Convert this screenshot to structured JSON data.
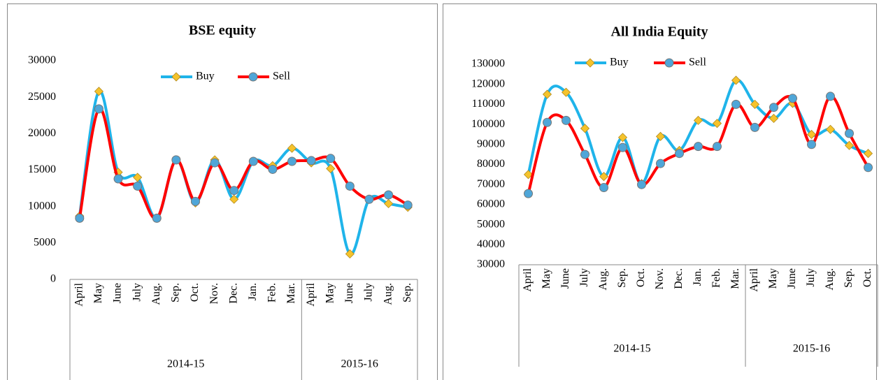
{
  "chart_data": [
    {
      "type": "line",
      "title": "BSE equity",
      "categories": [
        "April",
        "May",
        "June",
        "July",
        "Aug.",
        "Sep.",
        "Oct.",
        "Nov.",
        "Dec.",
        "Jan.",
        "Feb.",
        "Mar.",
        "April",
        "May",
        "June",
        "July",
        "Aug.",
        "Sep."
      ],
      "groups": [
        {
          "name": "2014-15",
          "count": 12
        },
        {
          "name": "2015-16",
          "count": 6
        }
      ],
      "series": [
        {
          "name": "Buy",
          "color": "#1fb4ea",
          "marker_color": "#f5c32c",
          "marker": "diamond",
          "values": [
            8700,
            25800,
            14700,
            14000,
            8400,
            16400,
            10500,
            16400,
            11000,
            16200,
            15600,
            18000,
            16000,
            15200,
            3500,
            11000,
            10400,
            9900
          ]
        },
        {
          "name": "Sell",
          "color": "#ff0000",
          "marker_color": "#4fa6d8",
          "marker": "circle",
          "values": [
            8400,
            23400,
            13800,
            12800,
            8400,
            16400,
            10700,
            16000,
            12200,
            16200,
            15100,
            16200,
            16300,
            16600,
            12800,
            11000,
            11600,
            10200
          ]
        }
      ],
      "ylim": [
        0,
        30000
      ],
      "yticks": [
        0,
        5000,
        10000,
        15000,
        20000,
        25000,
        30000
      ],
      "legend": "top",
      "grid": false
    },
    {
      "type": "line",
      "title": "All India Equity",
      "categories": [
        "April",
        "May",
        "June",
        "July",
        "Aug.",
        "Sep.",
        "Oct.",
        "Nov.",
        "Dec.",
        "Jan.",
        "Feb.",
        "Mar.",
        "April",
        "May",
        "June",
        "July",
        "Aug.",
        "Sep.",
        "Oct."
      ],
      "groups": [
        {
          "name": "2014-15",
          "count": 12
        },
        {
          "name": "2015-16",
          "count": 7
        }
      ],
      "series": [
        {
          "name": "Buy",
          "color": "#1fb4ea",
          "marker_color": "#f5c32c",
          "marker": "diamond",
          "values": [
            75000,
            115000,
            116000,
            98000,
            74000,
            93500,
            70500,
            94000,
            87000,
            102000,
            100500,
            122000,
            110000,
            103000,
            110500,
            95000,
            97500,
            89500,
            85500
          ]
        },
        {
          "name": "Sell",
          "color": "#ff0000",
          "marker_color": "#4fa6d8",
          "marker": "circle",
          "values": [
            65500,
            101000,
            102000,
            85000,
            68500,
            88500,
            70000,
            80500,
            85500,
            89000,
            89000,
            110000,
            98500,
            108500,
            113000,
            90000,
            114000,
            95500,
            78500
          ]
        }
      ],
      "ylim": [
        30000,
        130000
      ],
      "yticks": [
        30000,
        40000,
        50000,
        60000,
        70000,
        80000,
        90000,
        100000,
        110000,
        120000,
        130000
      ],
      "legend": "top",
      "grid": false
    }
  ]
}
